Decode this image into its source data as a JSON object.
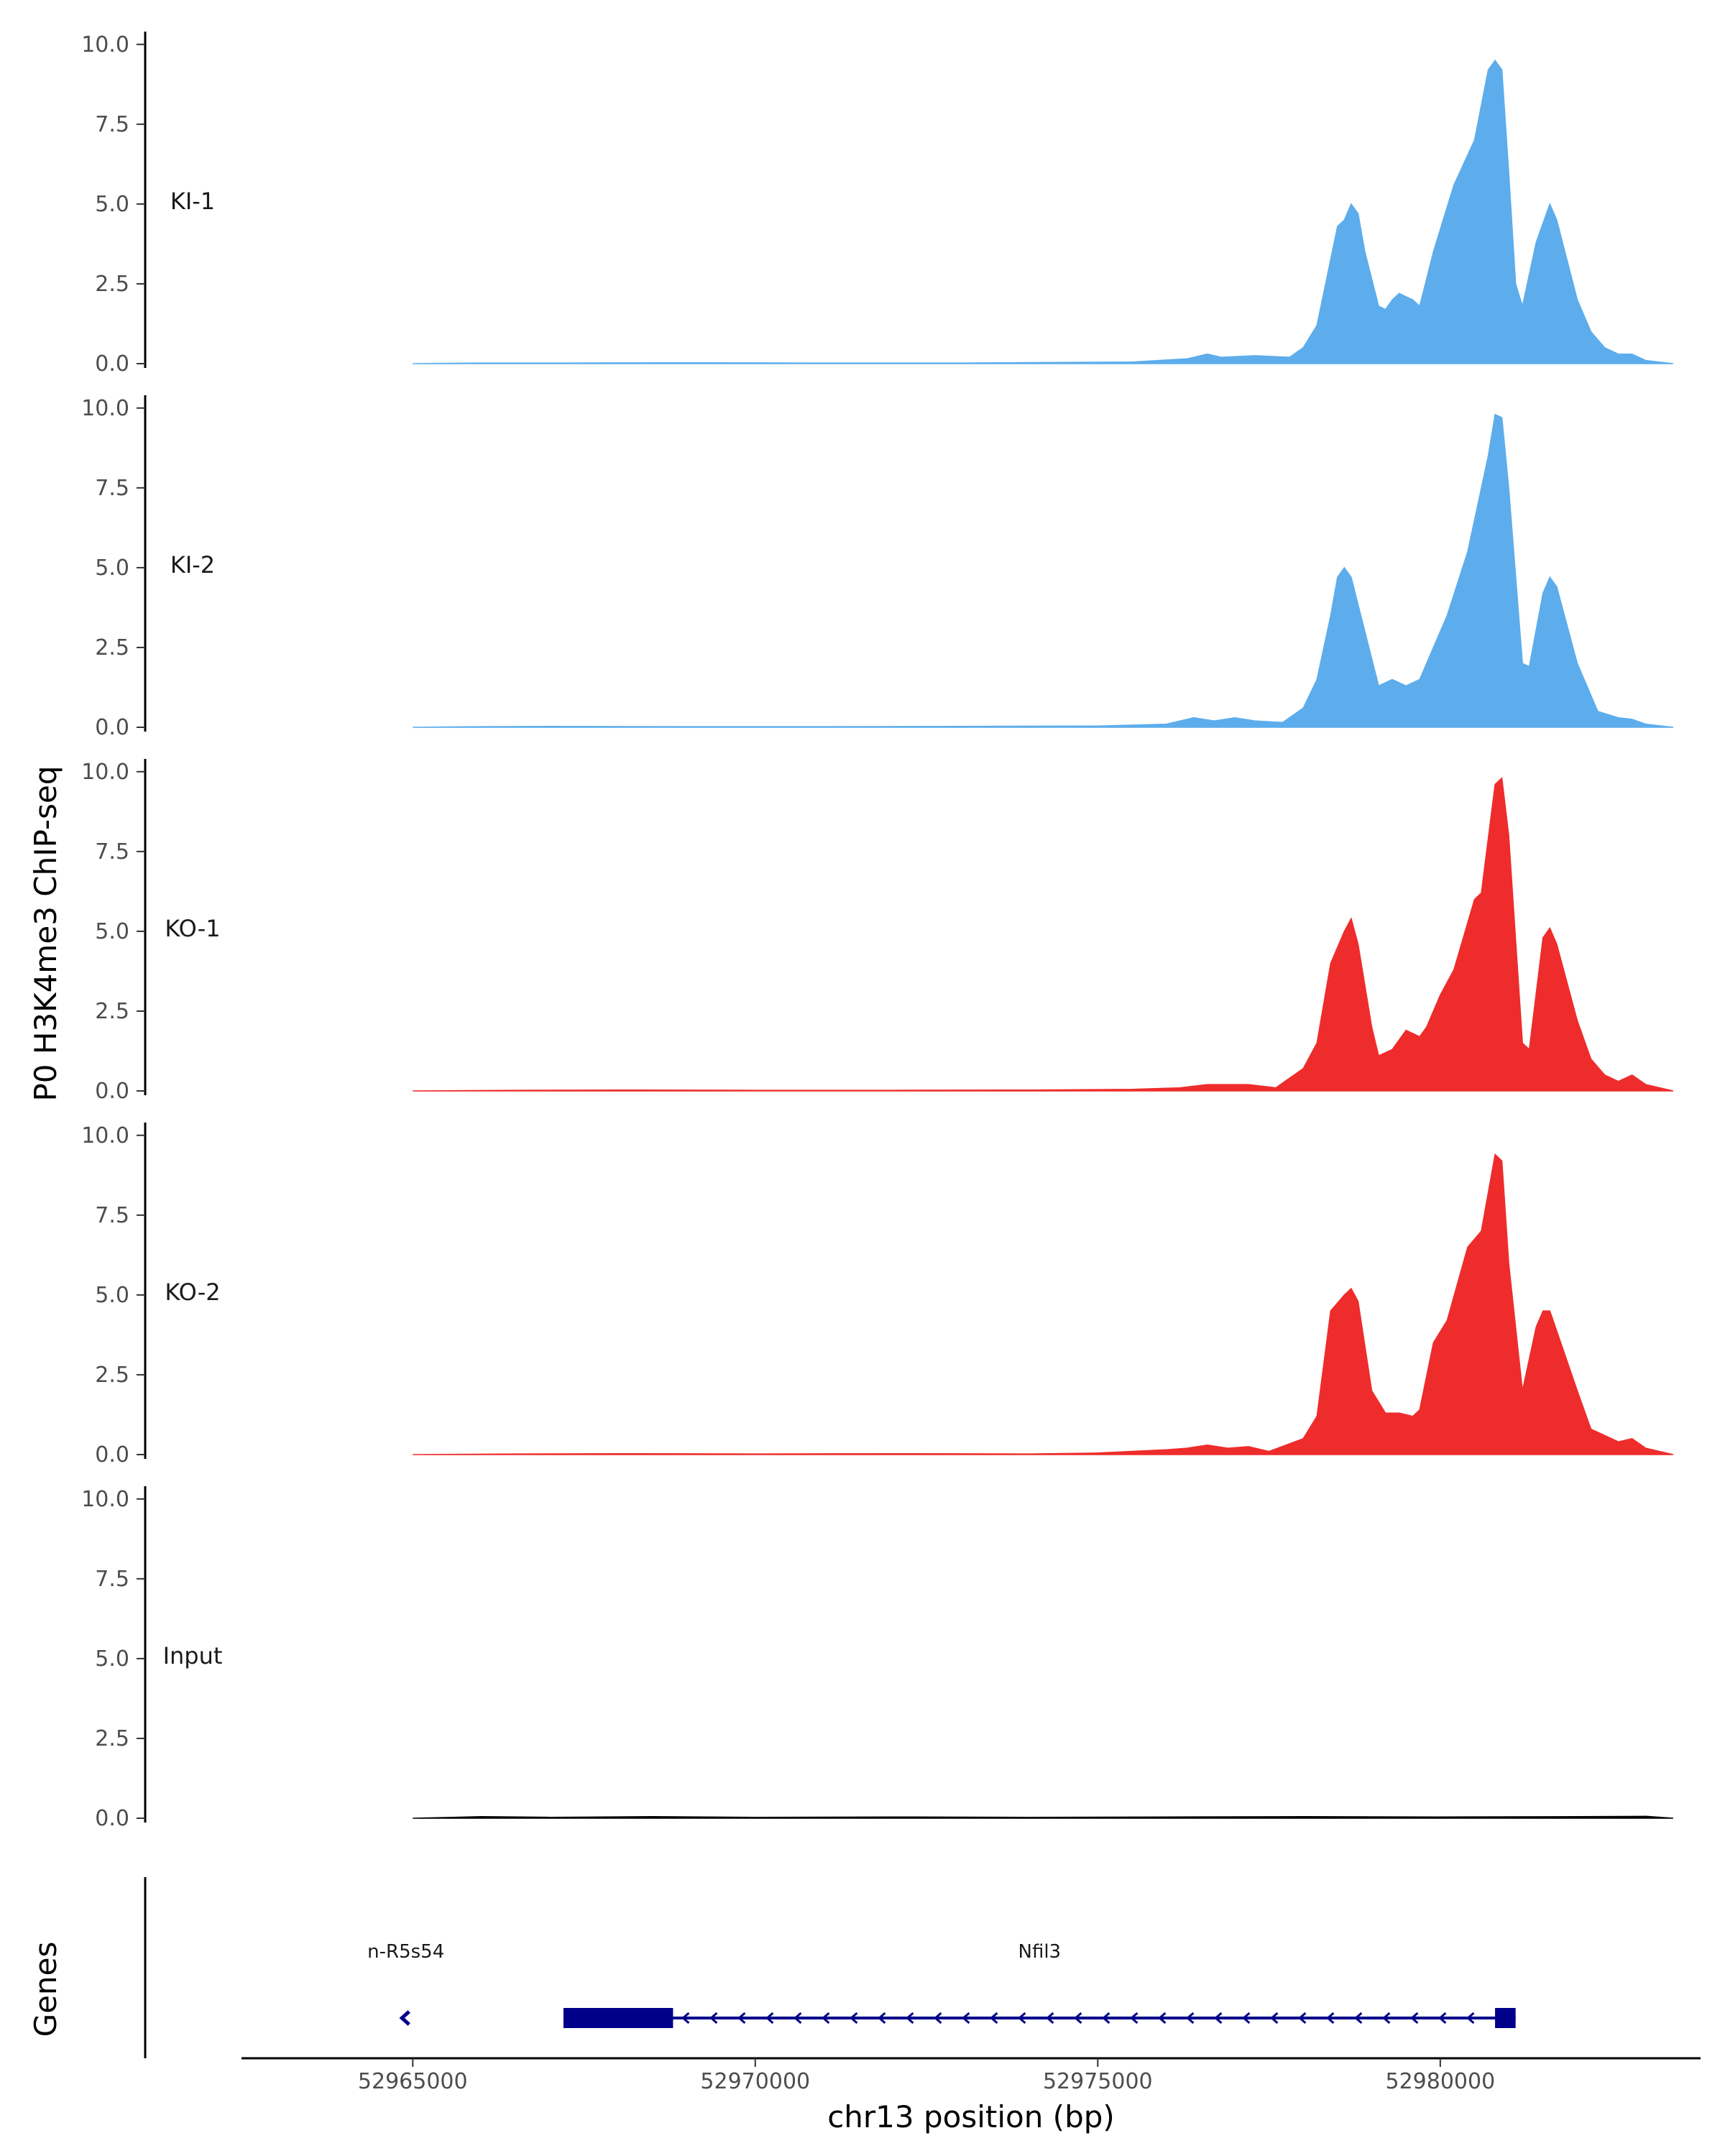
{
  "y_axis_title": "P0 H3K4me3 ChIP-seq",
  "genes_axis_title": "Genes",
  "x_axis_title": "chr13 position (bp)",
  "colors": {
    "KI": "#5DADEC",
    "KO": "#EE2C2C",
    "Input": "#000000",
    "gene": "#00008B",
    "axis": "#000000"
  },
  "genes": [
    {
      "name": "n-R5s54",
      "start": 52964800,
      "end": 52965000,
      "strand": "-",
      "exon_blocks": []
    },
    {
      "name": "Nfil3",
      "start": 52967200,
      "end": 52981100,
      "strand": "-",
      "exon_blocks": [
        [
          52967200,
          52968800
        ],
        [
          52980800,
          52981100
        ]
      ]
    }
  ],
  "chart_data": {
    "type": "area",
    "x_range": [
      52962500,
      52983800
    ],
    "xticks": [
      52965000,
      52970000,
      52975000,
      52980000
    ],
    "xtick_labels": [
      "52965000",
      "52970000",
      "52975000",
      "52980000"
    ],
    "yrange": [
      0,
      10.4
    ],
    "yticks": [
      0,
      2.5,
      5,
      7.5,
      10
    ],
    "ytick_labels": [
      "0.0",
      "2.5",
      "5.0",
      "7.5",
      "10.0"
    ],
    "tracks": [
      {
        "label": "KI-1",
        "color": "#5DADEC",
        "points": [
          [
            52965000,
            0
          ],
          [
            52966000,
            0.02
          ],
          [
            52967000,
            0.02
          ],
          [
            52969000,
            0.03
          ],
          [
            52971000,
            0.02
          ],
          [
            52973000,
            0.02
          ],
          [
            52974500,
            0.04
          ],
          [
            52975500,
            0.05
          ],
          [
            52976300,
            0.15
          ],
          [
            52976600,
            0.3
          ],
          [
            52976800,
            0.2
          ],
          [
            52977300,
            0.25
          ],
          [
            52977800,
            0.2
          ],
          [
            52978000,
            0.5
          ],
          [
            52978200,
            1.2
          ],
          [
            52978500,
            4.3
          ],
          [
            52978600,
            4.5
          ],
          [
            52978700,
            5.0
          ],
          [
            52978800,
            4.7
          ],
          [
            52978900,
            3.5
          ],
          [
            52979100,
            1.8
          ],
          [
            52979200,
            1.7
          ],
          [
            52979300,
            2.0
          ],
          [
            52979400,
            2.2
          ],
          [
            52979600,
            2.0
          ],
          [
            52979700,
            1.8
          ],
          [
            52979900,
            3.5
          ],
          [
            52980000,
            4.2
          ],
          [
            52980200,
            5.6
          ],
          [
            52980500,
            7.0
          ],
          [
            52980700,
            9.2
          ],
          [
            52980800,
            9.5
          ],
          [
            52980900,
            9.2
          ],
          [
            52981000,
            6.0
          ],
          [
            52981100,
            2.5
          ],
          [
            52981200,
            1.8
          ],
          [
            52981400,
            3.8
          ],
          [
            52981600,
            5.0
          ],
          [
            52981700,
            4.5
          ],
          [
            52982000,
            2.0
          ],
          [
            52982200,
            1.0
          ],
          [
            52982400,
            0.5
          ],
          [
            52982600,
            0.3
          ],
          [
            52982800,
            0.3
          ],
          [
            52983000,
            0.1
          ],
          [
            52983400,
            0
          ]
        ]
      },
      {
        "label": "KI-2",
        "color": "#5DADEC",
        "points": [
          [
            52965000,
            0
          ],
          [
            52966000,
            0.02
          ],
          [
            52967000,
            0.03
          ],
          [
            52969000,
            0.02
          ],
          [
            52971000,
            0.02
          ],
          [
            52973000,
            0.03
          ],
          [
            52975000,
            0.04
          ],
          [
            52976000,
            0.1
          ],
          [
            52976400,
            0.3
          ],
          [
            52976700,
            0.2
          ],
          [
            52977000,
            0.3
          ],
          [
            52977300,
            0.2
          ],
          [
            52977700,
            0.15
          ],
          [
            52978000,
            0.6
          ],
          [
            52978200,
            1.5
          ],
          [
            52978400,
            3.5
          ],
          [
            52978500,
            4.7
          ],
          [
            52978600,
            5.0
          ],
          [
            52978700,
            4.7
          ],
          [
            52978900,
            3.0
          ],
          [
            52979100,
            1.3
          ],
          [
            52979300,
            1.5
          ],
          [
            52979500,
            1.3
          ],
          [
            52979700,
            1.5
          ],
          [
            52979900,
            2.5
          ],
          [
            52980100,
            3.5
          ],
          [
            52980400,
            5.5
          ],
          [
            52980700,
            8.5
          ],
          [
            52980800,
            9.8
          ],
          [
            52980900,
            9.7
          ],
          [
            52981000,
            7.5
          ],
          [
            52981200,
            2.0
          ],
          [
            52981300,
            1.9
          ],
          [
            52981500,
            4.2
          ],
          [
            52981600,
            4.7
          ],
          [
            52981700,
            4.4
          ],
          [
            52982000,
            2.0
          ],
          [
            52982300,
            0.5
          ],
          [
            52982600,
            0.3
          ],
          [
            52982800,
            0.25
          ],
          [
            52983000,
            0.1
          ],
          [
            52983400,
            0
          ]
        ]
      },
      {
        "label": "KO-1",
        "color": "#EE2C2C",
        "points": [
          [
            52965000,
            0
          ],
          [
            52966500,
            0.02
          ],
          [
            52968000,
            0.03
          ],
          [
            52970000,
            0.02
          ],
          [
            52972000,
            0.02
          ],
          [
            52974000,
            0.03
          ],
          [
            52975500,
            0.05
          ],
          [
            52976200,
            0.1
          ],
          [
            52976600,
            0.2
          ],
          [
            52977200,
            0.2
          ],
          [
            52977600,
            0.1
          ],
          [
            52978000,
            0.7
          ],
          [
            52978200,
            1.5
          ],
          [
            52978400,
            4.0
          ],
          [
            52978600,
            5.0
          ],
          [
            52978700,
            5.4
          ],
          [
            52978800,
            4.6
          ],
          [
            52979000,
            2.0
          ],
          [
            52979100,
            1.1
          ],
          [
            52979300,
            1.3
          ],
          [
            52979500,
            1.9
          ],
          [
            52979700,
            1.7
          ],
          [
            52979800,
            2.0
          ],
          [
            52980000,
            3.0
          ],
          [
            52980200,
            3.8
          ],
          [
            52980500,
            6.0
          ],
          [
            52980600,
            6.2
          ],
          [
            52980800,
            9.6
          ],
          [
            52980900,
            9.8
          ],
          [
            52981000,
            8.0
          ],
          [
            52981200,
            1.5
          ],
          [
            52981300,
            1.3
          ],
          [
            52981500,
            4.8
          ],
          [
            52981600,
            5.1
          ],
          [
            52981700,
            4.6
          ],
          [
            52982000,
            2.2
          ],
          [
            52982200,
            1.0
          ],
          [
            52982400,
            0.5
          ],
          [
            52982600,
            0.3
          ],
          [
            52982800,
            0.5
          ],
          [
            52983000,
            0.2
          ],
          [
            52983400,
            0
          ]
        ]
      },
      {
        "label": "KO-2",
        "color": "#EE2C2C",
        "points": [
          [
            52965000,
            0
          ],
          [
            52966500,
            0.02
          ],
          [
            52968000,
            0.03
          ],
          [
            52970000,
            0.02
          ],
          [
            52972000,
            0.03
          ],
          [
            52974000,
            0.02
          ],
          [
            52975000,
            0.05
          ],
          [
            52976000,
            0.15
          ],
          [
            52976300,
            0.2
          ],
          [
            52976600,
            0.3
          ],
          [
            52976900,
            0.2
          ],
          [
            52977200,
            0.25
          ],
          [
            52977500,
            0.1
          ],
          [
            52978000,
            0.5
          ],
          [
            52978200,
            1.2
          ],
          [
            52978400,
            4.5
          ],
          [
            52978600,
            5.0
          ],
          [
            52978700,
            5.2
          ],
          [
            52978800,
            4.8
          ],
          [
            52979000,
            2.0
          ],
          [
            52979200,
            1.3
          ],
          [
            52979400,
            1.3
          ],
          [
            52979600,
            1.2
          ],
          [
            52979700,
            1.4
          ],
          [
            52979900,
            3.5
          ],
          [
            52980100,
            4.2
          ],
          [
            52980400,
            6.5
          ],
          [
            52980600,
            7.0
          ],
          [
            52980800,
            9.4
          ],
          [
            52980900,
            9.2
          ],
          [
            52981000,
            6.0
          ],
          [
            52981200,
            2.0
          ],
          [
            52981400,
            4.0
          ],
          [
            52981500,
            4.5
          ],
          [
            52981600,
            4.5
          ],
          [
            52982000,
            2.0
          ],
          [
            52982200,
            0.8
          ],
          [
            52982400,
            0.6
          ],
          [
            52982600,
            0.4
          ],
          [
            52982800,
            0.5
          ],
          [
            52983000,
            0.2
          ],
          [
            52983400,
            0
          ]
        ]
      },
      {
        "label": "Input",
        "color": "#000000",
        "points": [
          [
            52965000,
            0
          ],
          [
            52966000,
            0.05
          ],
          [
            52967000,
            0.03
          ],
          [
            52968500,
            0.05
          ],
          [
            52970000,
            0.03
          ],
          [
            52972000,
            0.04
          ],
          [
            52974000,
            0.03
          ],
          [
            52976000,
            0.04
          ],
          [
            52978000,
            0.05
          ],
          [
            52980000,
            0.04
          ],
          [
            52982000,
            0.05
          ],
          [
            52983000,
            0.06
          ],
          [
            52983400,
            0
          ]
        ]
      }
    ]
  }
}
